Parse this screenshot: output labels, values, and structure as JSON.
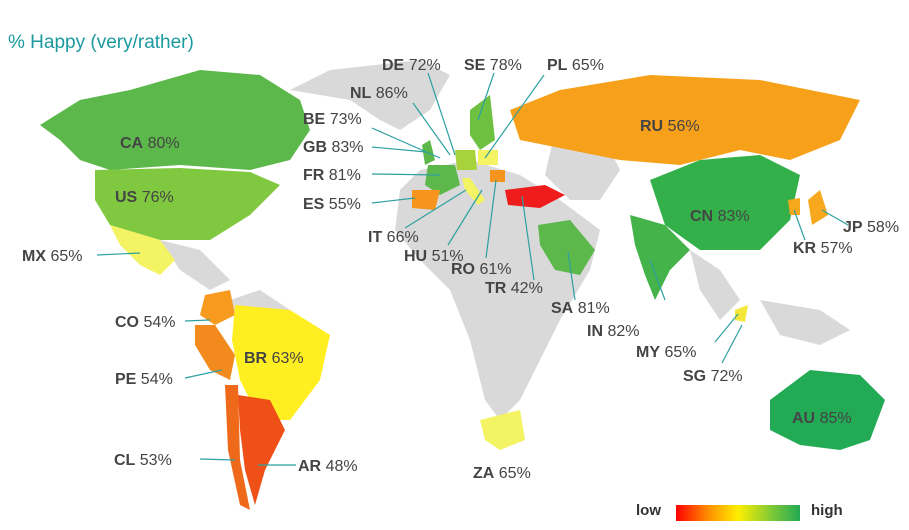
{
  "title": "% Happy (very/rather)",
  "legend": {
    "low": "low",
    "high": "high"
  },
  "countries": [
    {
      "code": "CA",
      "value": "80%"
    },
    {
      "code": "US",
      "value": "76%"
    },
    {
      "code": "MX",
      "value": "65%"
    },
    {
      "code": "CO",
      "value": "54%"
    },
    {
      "code": "PE",
      "value": "54%"
    },
    {
      "code": "BR",
      "value": "63%"
    },
    {
      "code": "CL",
      "value": "53%"
    },
    {
      "code": "AR",
      "value": "48%"
    },
    {
      "code": "DE",
      "value": "72%"
    },
    {
      "code": "SE",
      "value": "78%"
    },
    {
      "code": "PL",
      "value": "65%"
    },
    {
      "code": "NL",
      "value": "86%"
    },
    {
      "code": "BE",
      "value": "73%"
    },
    {
      "code": "GB",
      "value": "83%"
    },
    {
      "code": "FR",
      "value": "81%"
    },
    {
      "code": "ES",
      "value": "55%"
    },
    {
      "code": "IT",
      "value": "66%"
    },
    {
      "code": "HU",
      "value": "51%"
    },
    {
      "code": "RO",
      "value": "61%"
    },
    {
      "code": "TR",
      "value": "42%"
    },
    {
      "code": "SA",
      "value": "81%"
    },
    {
      "code": "IN",
      "value": "82%"
    },
    {
      "code": "MY",
      "value": "65%"
    },
    {
      "code": "SG",
      "value": "72%"
    },
    {
      "code": "RU",
      "value": "56%"
    },
    {
      "code": "CN",
      "value": "83%"
    },
    {
      "code": "JP",
      "value": "58%"
    },
    {
      "code": "KR",
      "value": "57%"
    },
    {
      "code": "AU",
      "value": "85%"
    },
    {
      "code": "ZA",
      "value": "65%"
    }
  ]
}
